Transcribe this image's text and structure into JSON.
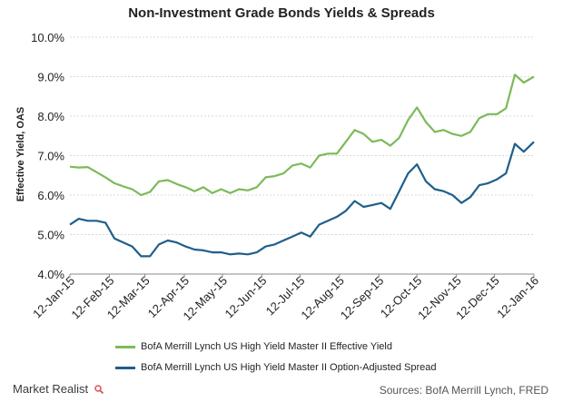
{
  "chart_data": {
    "type": "line",
    "title": "Non-Investment Grade Bonds Yields & Spreads",
    "ylabel": "Effective Yield, OAS",
    "ylim": [
      4.0,
      10.0
    ],
    "yticks": [
      "4.0%",
      "5.0%",
      "6.0%",
      "7.0%",
      "8.0%",
      "9.0%",
      "10.0%"
    ],
    "ytick_values": [
      4,
      5,
      6,
      7,
      8,
      9,
      10
    ],
    "xticks": [
      "12-Jan-15",
      "12-Feb-15",
      "12-Mar-15",
      "12-Apr-15",
      "12-May-15",
      "12-Jun-15",
      "12-Jul-15",
      "12-Aug-15",
      "12-Sep-15",
      "12-Oct-15",
      "12-Nov-15",
      "12-Dec-15",
      "12-Jan-16"
    ],
    "x_tick_dates": [
      "2015-01-12",
      "2015-02-12",
      "2015-03-12",
      "2015-04-12",
      "2015-05-12",
      "2015-06-12",
      "2015-07-12",
      "2015-08-12",
      "2015-09-12",
      "2015-10-12",
      "2015-11-12",
      "2015-12-12",
      "2016-01-12"
    ],
    "xlim": [
      "2015-01-12",
      "2016-01-12"
    ],
    "grid": true,
    "legend_position": "bottom",
    "series": [
      {
        "name": "BofA Merrill Lynch US High Yield Master II Effective Yield",
        "color": "#7cba59",
        "x": [
          "2015-01-12",
          "2015-01-19",
          "2015-01-26",
          "2015-02-02",
          "2015-02-09",
          "2015-02-16",
          "2015-02-23",
          "2015-03-02",
          "2015-03-09",
          "2015-03-16",
          "2015-03-23",
          "2015-03-30",
          "2015-04-06",
          "2015-04-13",
          "2015-04-20",
          "2015-04-27",
          "2015-05-04",
          "2015-05-11",
          "2015-05-18",
          "2015-05-25",
          "2015-06-01",
          "2015-06-08",
          "2015-06-15",
          "2015-06-22",
          "2015-06-29",
          "2015-07-06",
          "2015-07-13",
          "2015-07-20",
          "2015-07-27",
          "2015-08-03",
          "2015-08-10",
          "2015-08-17",
          "2015-08-24",
          "2015-08-31",
          "2015-09-07",
          "2015-09-14",
          "2015-09-21",
          "2015-09-28",
          "2015-10-05",
          "2015-10-12",
          "2015-10-19",
          "2015-10-26",
          "2015-11-02",
          "2015-11-09",
          "2015-11-16",
          "2015-11-23",
          "2015-11-30",
          "2015-12-07",
          "2015-12-14",
          "2015-12-21",
          "2015-12-28",
          "2016-01-04",
          "2016-01-12"
        ],
        "values": [
          6.72,
          6.7,
          6.71,
          6.58,
          6.45,
          6.3,
          6.22,
          6.15,
          6.0,
          6.08,
          6.35,
          6.38,
          6.28,
          6.2,
          6.1,
          6.2,
          6.05,
          6.15,
          6.05,
          6.15,
          6.12,
          6.2,
          6.45,
          6.48,
          6.55,
          6.75,
          6.8,
          6.7,
          7.0,
          7.05,
          7.05,
          7.35,
          7.65,
          7.55,
          7.35,
          7.4,
          7.25,
          7.45,
          7.9,
          8.22,
          7.85,
          7.6,
          7.65,
          7.55,
          7.5,
          7.6,
          7.95,
          8.05,
          8.05,
          8.2,
          9.05,
          8.85,
          9.0
        ]
      },
      {
        "name": "BofA Merrill Lynch US High Yield Master II Option-Adjusted Spread",
        "color": "#1f5f8b",
        "x": [
          "2015-01-12",
          "2015-01-19",
          "2015-01-26",
          "2015-02-02",
          "2015-02-09",
          "2015-02-16",
          "2015-02-23",
          "2015-03-02",
          "2015-03-09",
          "2015-03-16",
          "2015-03-23",
          "2015-03-30",
          "2015-04-06",
          "2015-04-13",
          "2015-04-20",
          "2015-04-27",
          "2015-05-04",
          "2015-05-11",
          "2015-05-18",
          "2015-05-25",
          "2015-06-01",
          "2015-06-08",
          "2015-06-15",
          "2015-06-22",
          "2015-06-29",
          "2015-07-06",
          "2015-07-13",
          "2015-07-20",
          "2015-07-27",
          "2015-08-03",
          "2015-08-10",
          "2015-08-17",
          "2015-08-24",
          "2015-08-31",
          "2015-09-07",
          "2015-09-14",
          "2015-09-21",
          "2015-09-28",
          "2015-10-05",
          "2015-10-12",
          "2015-10-19",
          "2015-10-26",
          "2015-11-02",
          "2015-11-09",
          "2015-11-16",
          "2015-11-23",
          "2015-11-30",
          "2015-12-07",
          "2015-12-14",
          "2015-12-21",
          "2015-12-28",
          "2016-01-04",
          "2016-01-12"
        ],
        "values": [
          5.25,
          5.4,
          5.35,
          5.35,
          5.3,
          4.9,
          4.8,
          4.7,
          4.45,
          4.45,
          4.75,
          4.85,
          4.8,
          4.7,
          4.62,
          4.6,
          4.55,
          4.55,
          4.5,
          4.52,
          4.5,
          4.55,
          4.7,
          4.75,
          4.85,
          4.95,
          5.05,
          4.95,
          5.25,
          5.35,
          5.45,
          5.6,
          5.85,
          5.7,
          5.75,
          5.8,
          5.65,
          6.1,
          6.55,
          6.78,
          6.35,
          6.15,
          6.1,
          6.0,
          5.8,
          5.95,
          6.25,
          6.3,
          6.4,
          6.55,
          7.3,
          7.1,
          7.35
        ]
      }
    ]
  },
  "brand": {
    "logo_text": "Market Realist",
    "logo_icon": "magnifier-icon"
  },
  "source_text": "Sources: BofA Merrill Lynch, FRED"
}
